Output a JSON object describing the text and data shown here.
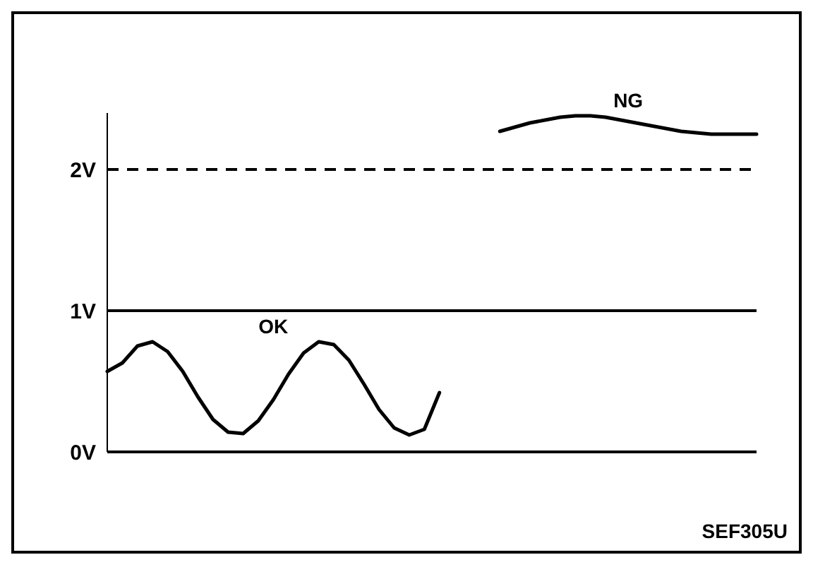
{
  "chart_data": {
    "type": "line",
    "categories": [
      null,
      null,
      null,
      null,
      null,
      null,
      null,
      null,
      null,
      null,
      null,
      null,
      null,
      null,
      null,
      null,
      null,
      null,
      null,
      null,
      null,
      null,
      null,
      null,
      null,
      null,
      null,
      null,
      null,
      null,
      null,
      null,
      null,
      null,
      null,
      null,
      null,
      null,
      null,
      null,
      null,
      null,
      null,
      null
    ],
    "series": [
      {
        "name": "OK",
        "color": "#000000",
        "values": [
          0.57,
          0.63,
          0.75,
          0.78,
          0.71,
          0.57,
          0.39,
          0.23,
          0.14,
          0.13,
          0.22,
          0.37,
          0.55,
          0.7,
          0.78,
          0.76,
          0.65,
          0.48,
          0.3,
          0.17,
          0.12,
          0.16,
          0.42,
          null,
          null,
          null,
          null,
          null,
          null,
          null,
          null,
          null,
          null,
          null,
          null,
          null,
          null,
          null,
          null,
          null,
          null,
          null,
          null,
          null
        ]
      },
      {
        "name": "NG",
        "color": "#000000",
        "values": [
          null,
          null,
          null,
          null,
          null,
          null,
          null,
          null,
          null,
          null,
          null,
          null,
          null,
          null,
          null,
          null,
          null,
          null,
          null,
          null,
          null,
          null,
          null,
          null,
          null,
          null,
          2.27,
          2.3,
          2.33,
          2.35,
          2.37,
          2.38,
          2.38,
          2.37,
          2.35,
          2.33,
          2.31,
          2.29,
          2.27,
          2.26,
          2.25,
          2.25,
          2.25,
          2.25
        ]
      }
    ],
    "ylim": [
      0,
      2.4
    ],
    "yticks": [
      {
        "value": 0,
        "label": "0V"
      },
      {
        "value": 1,
        "label": "1V"
      },
      {
        "value": 2,
        "label": "2V"
      }
    ],
    "ref_lines": [
      {
        "axis": "y",
        "value": 0,
        "color": "#000000",
        "line_style": "solid"
      },
      {
        "axis": "y",
        "value": 1,
        "color": "#000000",
        "line_style": "solid"
      },
      {
        "axis": "y",
        "value": 2,
        "color": "#000000",
        "line_style": "dashed"
      }
    ],
    "annotations": [
      "SEF305U"
    ],
    "grid": false,
    "legend": false,
    "marker": "none",
    "line_style": "solid",
    "tick_labels": "y"
  }
}
